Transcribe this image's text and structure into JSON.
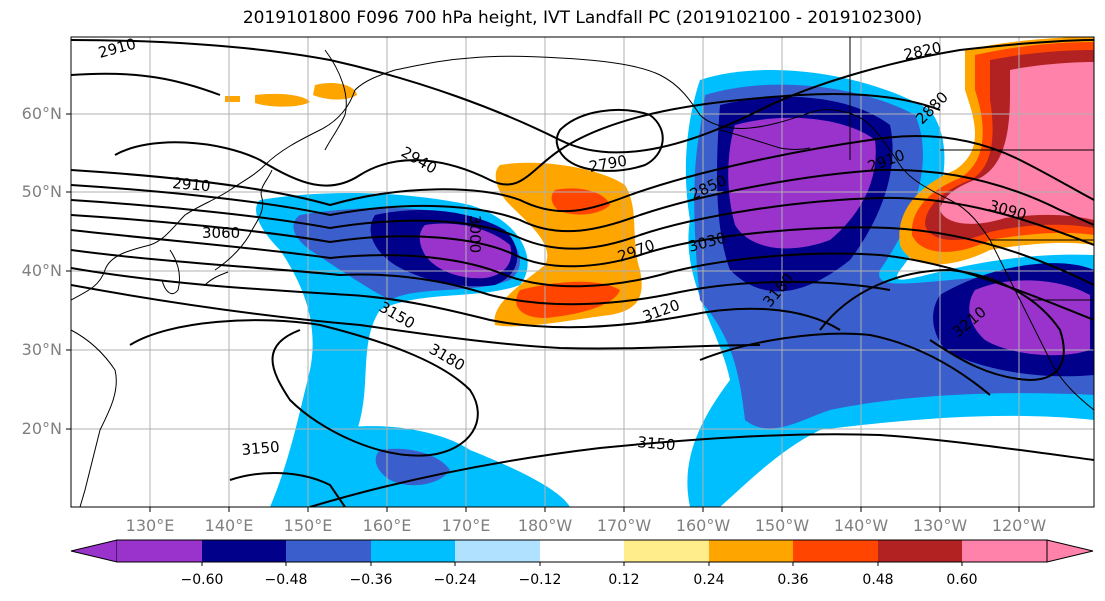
{
  "title": "2019101800 F096 700 hPa height, IVT Landfall PC (2019102100 - 2019102300)",
  "lat_labels": [
    "60°N",
    "50°N",
    "40°N",
    "30°N",
    "20°N"
  ],
  "lon_labels": [
    "130°E",
    "140°E",
    "150°E",
    "160°E",
    "170°E",
    "180°W",
    "170°W",
    "160°W",
    "150°W",
    "140°W",
    "130°W",
    "120°W"
  ],
  "colorbar": {
    "colors": [
      "#9933cc",
      "#00008b",
      "#3a5fcd",
      "#00bfff",
      "#b0e2ff",
      "#ffffff",
      "#ffec8b",
      "#ffa500",
      "#ff4500",
      "#b22222",
      "#ff82ab"
    ],
    "ticks": [
      "−0.60",
      "−0.48",
      "−0.36",
      "−0.24",
      "−0.12",
      "0.12",
      "0.24",
      "0.36",
      "0.48",
      "0.60"
    ]
  },
  "contour_labels": [
    "2910",
    "2820",
    "2880",
    "2940",
    "2790",
    "2910",
    "2850",
    "2910",
    "3060",
    "3000",
    "2970",
    "3030",
    "3120",
    "3150",
    "3180",
    "3180",
    "3150",
    "3150",
    "3210",
    "3090"
  ]
}
